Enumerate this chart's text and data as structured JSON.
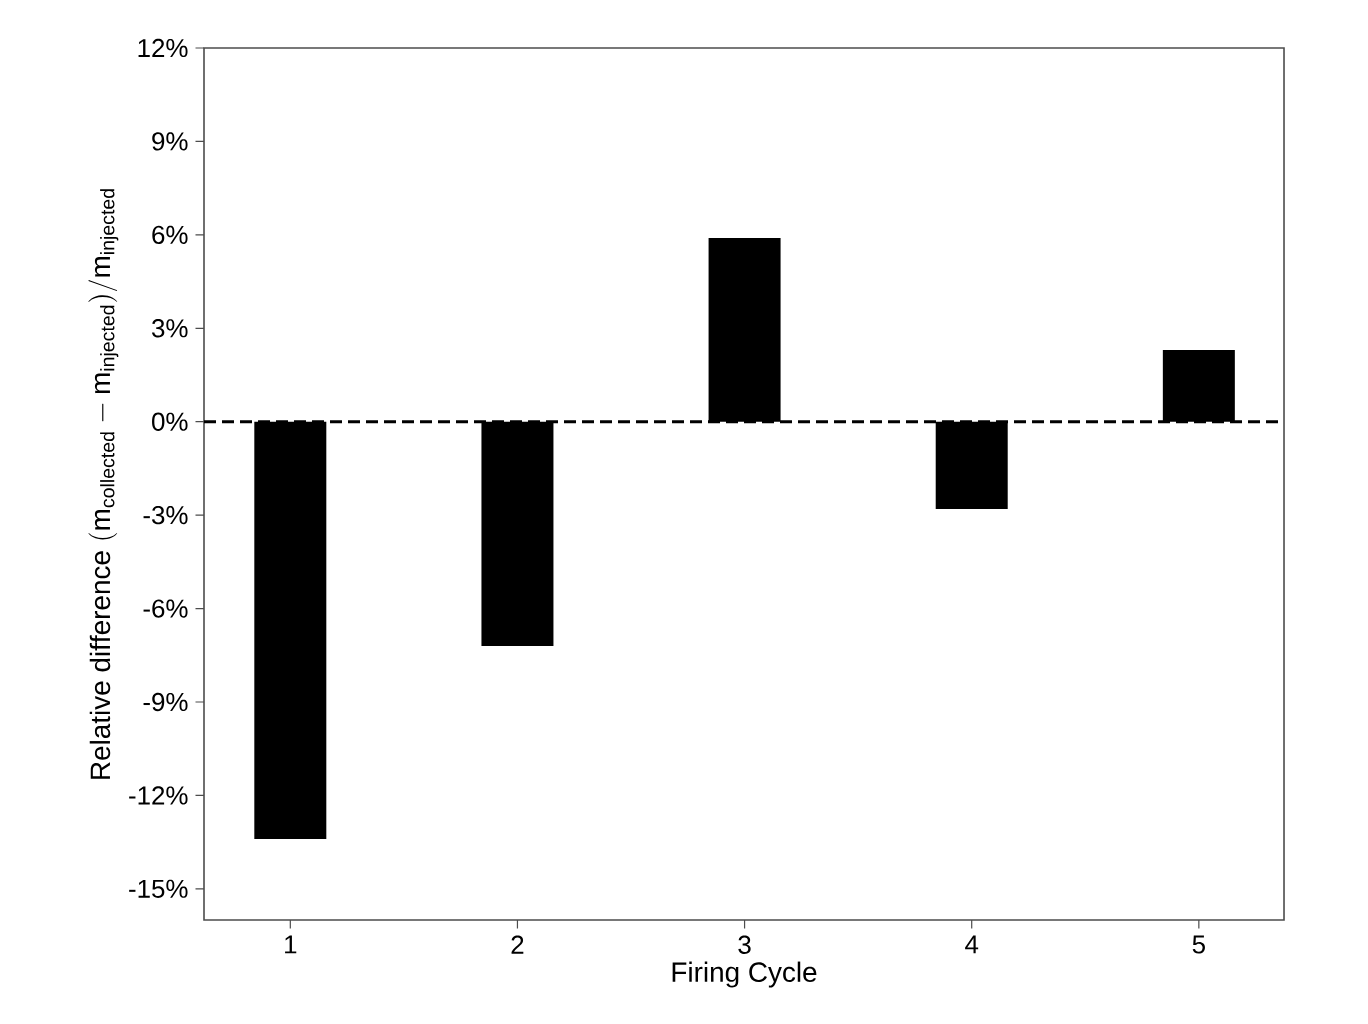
{
  "chart_data": {
    "type": "bar",
    "xlabel": "Firing Cycle",
    "ylabel": "\\mathrm{Relative\\ difference\\ (m_{collected} - m_{injected})/m_{injected}}",
    "categories": [
      "1",
      "2",
      "3",
      "4",
      "5"
    ],
    "values": [
      -13.4,
      -7.2,
      5.9,
      -2.8,
      2.3
    ],
    "color": "#000000",
    "ylim": [
      -16,
      12
    ],
    "yticks": [
      {
        "value": -15,
        "label": "-15%"
      },
      {
        "value": -12,
        "label": "-12%"
      },
      {
        "value": -9,
        "label": "-9%"
      },
      {
        "value": -6,
        "label": "-6%"
      },
      {
        "value": -3,
        "label": "-3%"
      },
      {
        "value": 0,
        "label": "0%"
      },
      {
        "value": 3,
        "label": "3%"
      },
      {
        "value": 6,
        "label": "6%"
      },
      {
        "value": 9,
        "label": "9%"
      },
      {
        "value": 12,
        "label": "12%"
      }
    ],
    "ref_lines": [
      {
        "axis": "y",
        "value": 0,
        "color": "#000000",
        "line_style": "dashed"
      }
    ],
    "grid": false
  }
}
